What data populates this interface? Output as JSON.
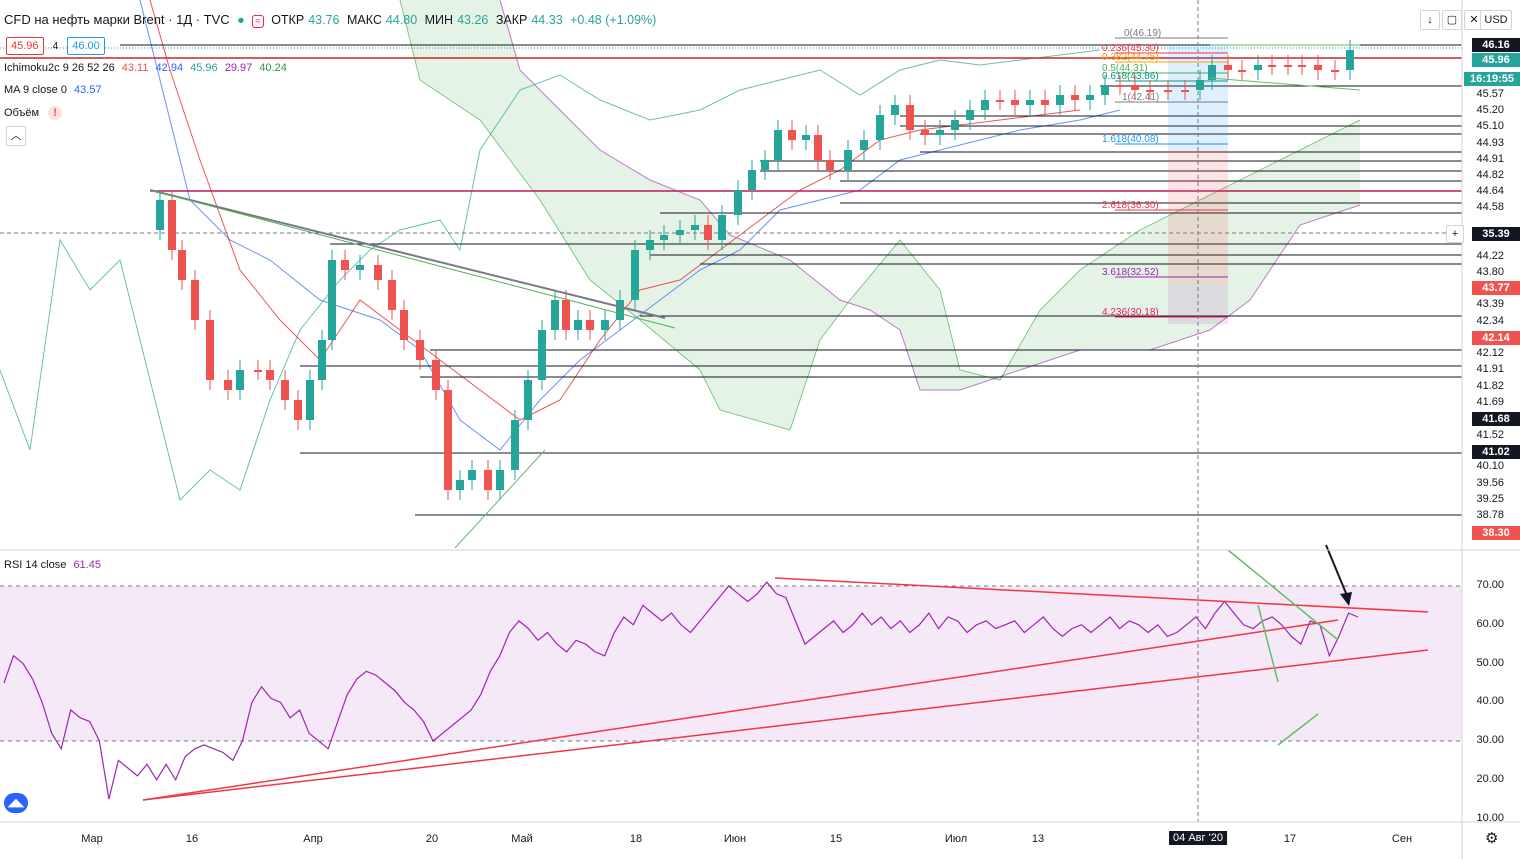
{
  "header": {
    "symbol": "CFD на нефть марки Brent · 1Д · TVC",
    "open_label": "ОТКР",
    "open": "43.76",
    "high_label": "МАКС",
    "high": "44.80",
    "low_label": "МИН",
    "low": "43.26",
    "close_label": "ЗАКР",
    "close": "44.33",
    "change": "+0.48 (+1.09%)",
    "sell": "45.96",
    "spread": "4",
    "buy": "46.00",
    "sell_top": "43.11"
  },
  "indicators": {
    "ichimoku_label": "Ichimoku2c 9 26 52 26",
    "ichimoku_values": [
      "43.11",
      "42.94",
      "45.96",
      "29.97",
      "40.24"
    ],
    "ma_label": "MA 9 close 0",
    "ma_value": "43.57",
    "volume_label": "Объём",
    "volume_warn": "!",
    "rsi_label": "RSI 14 close",
    "rsi_value": "61.45"
  },
  "toolbar": {
    "currency": "USD",
    "countdown": "16:19:55",
    "crosshair_price": "35.39",
    "selected_date": "04 Авг '20"
  },
  "colors": {
    "up": "#26a69a",
    "down": "#ef5350",
    "rsi": "#9c27b0",
    "trend": "#f23645",
    "fib": "#787b86"
  },
  "chart_data": {
    "type": "candlestick",
    "symbol": "CFD на нефть марки Brent",
    "interval": "1Д",
    "price_axis_ticks": [
      "46.16",
      "45.96",
      "45.57",
      "45.20",
      "45.10",
      "44.93",
      "44.91",
      "44.82",
      "44.64",
      "44.58",
      "44.22",
      "43.80",
      "43.39",
      "42.34",
      "42.12",
      "41.91",
      "41.82",
      "41.69",
      "41.52",
      "41.02",
      "40.10",
      "39.56",
      "39.25",
      "38.78"
    ],
    "price_badges": [
      {
        "label": "46.16",
        "color": "#131722"
      },
      {
        "label": "45.96",
        "color": "#26a69a"
      },
      {
        "label": "16:19:55",
        "color": "#26a69a"
      },
      {
        "label": "35.39",
        "color": "#131722"
      },
      {
        "label": "43.77",
        "color": "#ef5350"
      },
      {
        "label": "42.14",
        "color": "#ef5350"
      },
      {
        "label": "41.68",
        "color": "#131722"
      },
      {
        "label": "41.02",
        "color": "#131722"
      },
      {
        "label": "38.30",
        "color": "#ef5350"
      }
    ],
    "time_axis": [
      "Мар",
      "16",
      "Апр",
      "20",
      "Май",
      "18",
      "Июн",
      "15",
      "Июл",
      "13",
      "04 Авг '20",
      "17",
      "Сен"
    ],
    "fib_extension": [
      {
        "level": "0",
        "price": "46.19"
      },
      {
        "level": "0.236",
        "price": "45.30"
      },
      {
        "level": "0.382",
        "price": "44.75"
      },
      {
        "level": "0.5",
        "price": "44.31"
      },
      {
        "level": "0.618",
        "price": "43.86"
      },
      {
        "level": "1",
        "price": "42.41"
      },
      {
        "level": "1.618",
        "price": "40.08"
      },
      {
        "level": "2.618",
        "price": "36.30"
      },
      {
        "level": "3.618",
        "price": "32.52"
      },
      {
        "level": "4.236",
        "price": "30.18"
      }
    ],
    "rsi": {
      "period": 14,
      "source": "close",
      "last": 61.45,
      "ticks": [
        "70.00",
        "60.00",
        "50.00",
        "40.00",
        "30.00",
        "20.00",
        "10.00"
      ],
      "upper_band": 70,
      "lower_band": 30,
      "values": [
        45,
        52,
        50,
        46,
        40,
        32,
        28,
        38,
        36,
        35,
        30,
        15,
        25,
        23,
        21,
        24,
        20,
        24,
        20,
        26,
        28,
        29,
        28,
        27,
        25,
        30,
        40,
        44,
        41,
        40,
        36,
        38,
        32,
        30,
        28,
        35,
        42,
        46,
        48,
        47,
        45,
        43,
        40,
        38,
        35,
        30,
        32,
        34,
        36,
        38,
        42,
        48,
        52,
        58,
        61,
        59,
        56,
        58,
        55,
        53,
        56,
        55,
        53,
        52,
        58,
        62,
        60,
        65,
        63,
        61,
        63,
        60,
        58,
        61,
        64,
        67,
        70,
        68,
        66,
        68,
        71,
        68,
        67,
        61,
        55,
        57,
        59,
        61,
        58,
        60,
        63,
        60,
        62,
        59,
        61,
        58,
        60,
        63,
        59,
        62,
        61,
        58,
        60,
        61,
        59,
        60,
        61,
        58,
        60,
        62,
        59,
        57,
        59,
        60,
        58,
        60,
        62,
        59,
        61,
        60,
        58,
        60,
        57,
        58,
        60,
        62,
        59,
        63,
        66,
        63,
        60,
        59,
        61,
        62,
        60,
        57,
        55,
        61,
        60,
        52,
        57,
        63,
        62
      ]
    }
  }
}
